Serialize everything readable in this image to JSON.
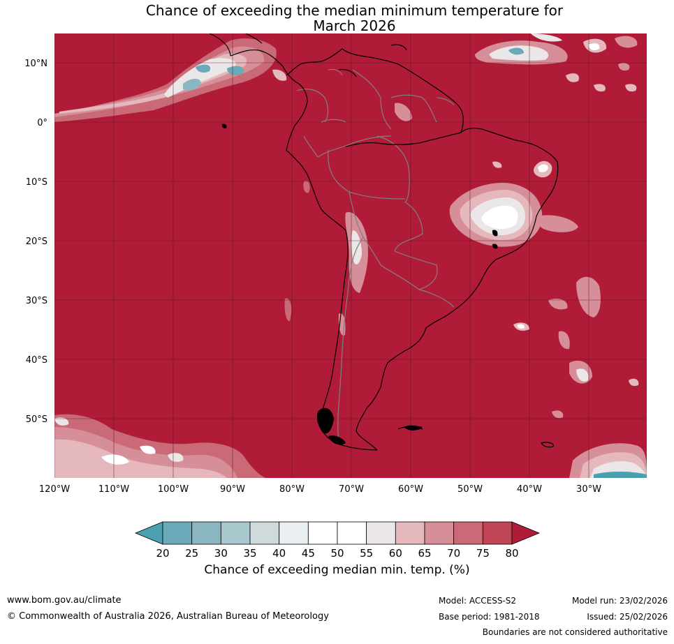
{
  "title": {
    "line1": "Chance of exceeding the median minimum temperature for",
    "line2": "March 2026"
  },
  "map": {
    "lat_labels": [
      "10°N",
      "0°",
      "10°S",
      "20°S",
      "30°S",
      "40°S",
      "50°S"
    ],
    "lon_labels": [
      "120°W",
      "110°W",
      "100°W",
      "90°W",
      "80°W",
      "70°W",
      "60°W",
      "50°W",
      "40°W",
      "30°W"
    ],
    "background_color": "#b01c37",
    "coastline_color": "#000000",
    "border_color": "#808080"
  },
  "colorbar": {
    "ticks": [
      "20",
      "25",
      "30",
      "35",
      "40",
      "45",
      "50",
      "55",
      "60",
      "65",
      "70",
      "75",
      "80"
    ],
    "colors": [
      "#6aa9b8",
      "#8ab6c2",
      "#a9c8ce",
      "#d0d9db",
      "#e9eff1",
      "#ffffff",
      "#ffffff",
      "#ebe7e8",
      "#e4b8bd",
      "#d68e98",
      "#c96a76",
      "#c04556"
    ],
    "below_color": "#4aa0b1",
    "above_color": "#b01c37",
    "label": "Chance of exceeding median min. temp. (%)"
  },
  "footer": {
    "website": "www.bom.gov.au/climate",
    "copyright": "© Commonwealth of Australia 2026, Australian Bureau of Meteorology",
    "model": "Model: ACCESS-S2",
    "base_period": "Base period: 1981-2018",
    "model_run": "Model run: 23/02/2026",
    "issued": "Issued: 25/02/2026",
    "disclaimer": "Boundaries are not considered authoritative"
  }
}
